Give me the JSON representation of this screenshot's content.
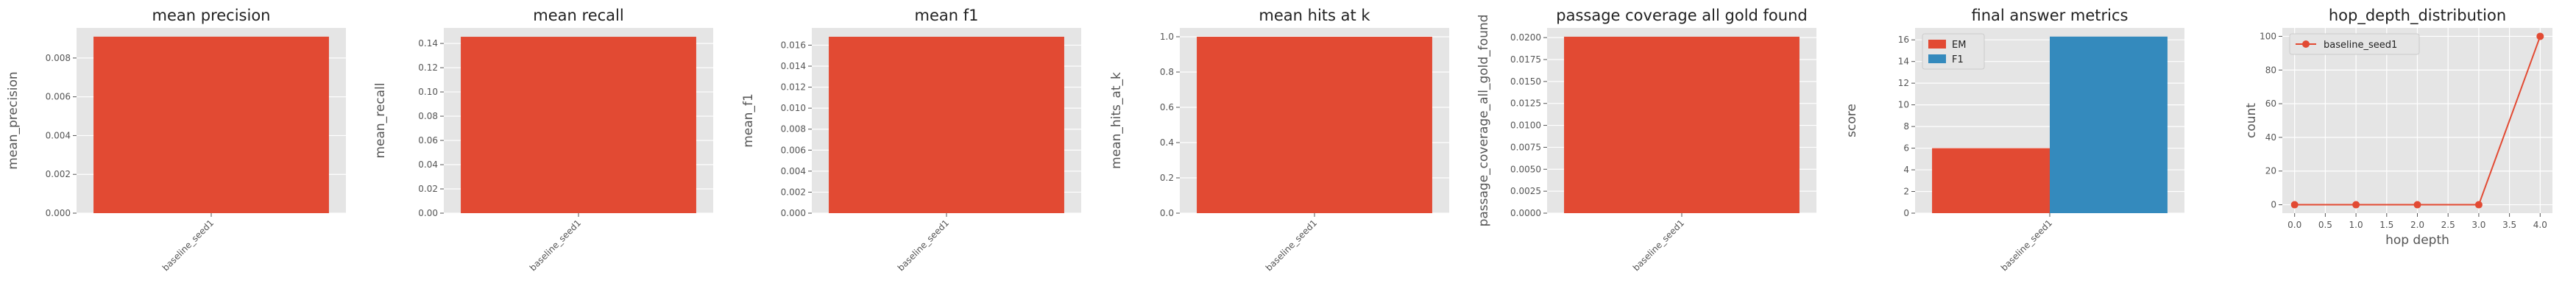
{
  "colors": {
    "panel_bg": "#E5E5E5",
    "grid": "#FFFFFF",
    "red": "#E24A33",
    "blue": "#348ABD"
  },
  "chart_data": [
    {
      "type": "bar",
      "title": "mean precision",
      "xlabel": "",
      "ylabel": "mean_precision",
      "categories": [
        "baseline_seed1"
      ],
      "values": [
        0.0091
      ],
      "ylim": [
        0,
        0.00955
      ],
      "yticks": [
        0,
        0.002,
        0.004,
        0.006,
        0.008
      ],
      "ytick_labels": [
        "0.000",
        "0.002",
        "0.004",
        "0.006",
        "0.008"
      ],
      "grid": true
    },
    {
      "type": "bar",
      "title": "mean recall",
      "xlabel": "",
      "ylabel": "mean_recall",
      "categories": [
        "baseline_seed1"
      ],
      "values": [
        0.1455
      ],
      "ylim": [
        0,
        0.1528
      ],
      "yticks": [
        0,
        0.02,
        0.04,
        0.06,
        0.08,
        0.1,
        0.12,
        0.14
      ],
      "ytick_labels": [
        "0.00",
        "0.02",
        "0.04",
        "0.06",
        "0.08",
        "0.10",
        "0.12",
        "0.14"
      ],
      "grid": true
    },
    {
      "type": "bar",
      "title": "mean f1",
      "xlabel": "",
      "ylabel": "mean_f1",
      "categories": [
        "baseline_seed1"
      ],
      "values": [
        0.0168
      ],
      "ylim": [
        0,
        0.01764
      ],
      "yticks": [
        0,
        0.002,
        0.004,
        0.006,
        0.008,
        0.01,
        0.012,
        0.014,
        0.016
      ],
      "ytick_labels": [
        "0.000",
        "0.002",
        "0.004",
        "0.006",
        "0.008",
        "0.010",
        "0.012",
        "0.014",
        "0.016"
      ],
      "grid": true
    },
    {
      "type": "bar",
      "title": "mean hits at k",
      "xlabel": "",
      "ylabel": "mean_hits_at_k",
      "categories": [
        "baseline_seed1"
      ],
      "values": [
        1.0
      ],
      "ylim": [
        0,
        1.05
      ],
      "yticks": [
        0,
        0.2,
        0.4,
        0.6,
        0.8,
        1.0
      ],
      "ytick_labels": [
        "0.0",
        "0.2",
        "0.4",
        "0.6",
        "0.8",
        "1.0"
      ],
      "grid": true
    },
    {
      "type": "bar",
      "title": "passage coverage all gold found",
      "xlabel": "",
      "ylabel": "passage_coverage_all_gold_found",
      "categories": [
        "baseline_seed1"
      ],
      "values": [
        0.0201
      ],
      "ylim": [
        0,
        0.0211
      ],
      "yticks": [
        0,
        0.0025,
        0.005,
        0.0075,
        0.01,
        0.0125,
        0.015,
        0.0175,
        0.02
      ],
      "ytick_labels": [
        "0.0000",
        "0.0025",
        "0.0050",
        "0.0075",
        "0.0100",
        "0.0125",
        "0.0150",
        "0.0175",
        "0.0200"
      ],
      "grid": true
    },
    {
      "type": "bar",
      "title": "final answer metrics",
      "xlabel": "",
      "ylabel": "score",
      "categories": [
        "baseline_seed1"
      ],
      "series": [
        {
          "name": "EM",
          "values": [
            6.0
          ],
          "color": "#E24A33"
        },
        {
          "name": "F1",
          "values": [
            16.3
          ],
          "color": "#348ABD"
        }
      ],
      "ylim": [
        0,
        17.1
      ],
      "yticks": [
        0,
        2,
        4,
        6,
        8,
        10,
        12,
        14,
        16
      ],
      "ytick_labels": [
        "0",
        "2",
        "4",
        "6",
        "8",
        "10",
        "12",
        "14",
        "16"
      ],
      "legend": "top-left",
      "grid": true
    },
    {
      "type": "line",
      "title": "hop_depth_distribution",
      "xlabel": "hop depth",
      "ylabel": "count",
      "series": [
        {
          "name": "baseline_seed1",
          "x": [
            0,
            1,
            2,
            3,
            4
          ],
          "y": [
            0,
            0,
            0,
            0,
            100
          ],
          "color": "#E24A33"
        }
      ],
      "xlim": [
        -0.2,
        4.2
      ],
      "ylim": [
        -5,
        105
      ],
      "xticks": [
        0,
        0.5,
        1.0,
        1.5,
        2.0,
        2.5,
        3.0,
        3.5,
        4.0
      ],
      "xtick_labels": [
        "0.0",
        "0.5",
        "1.0",
        "1.5",
        "2.0",
        "2.5",
        "3.0",
        "3.5",
        "4.0"
      ],
      "yticks": [
        0,
        20,
        40,
        60,
        80,
        100
      ],
      "ytick_labels": [
        "0",
        "20",
        "40",
        "60",
        "80",
        "100"
      ],
      "legend": "top-left",
      "grid": true
    }
  ]
}
